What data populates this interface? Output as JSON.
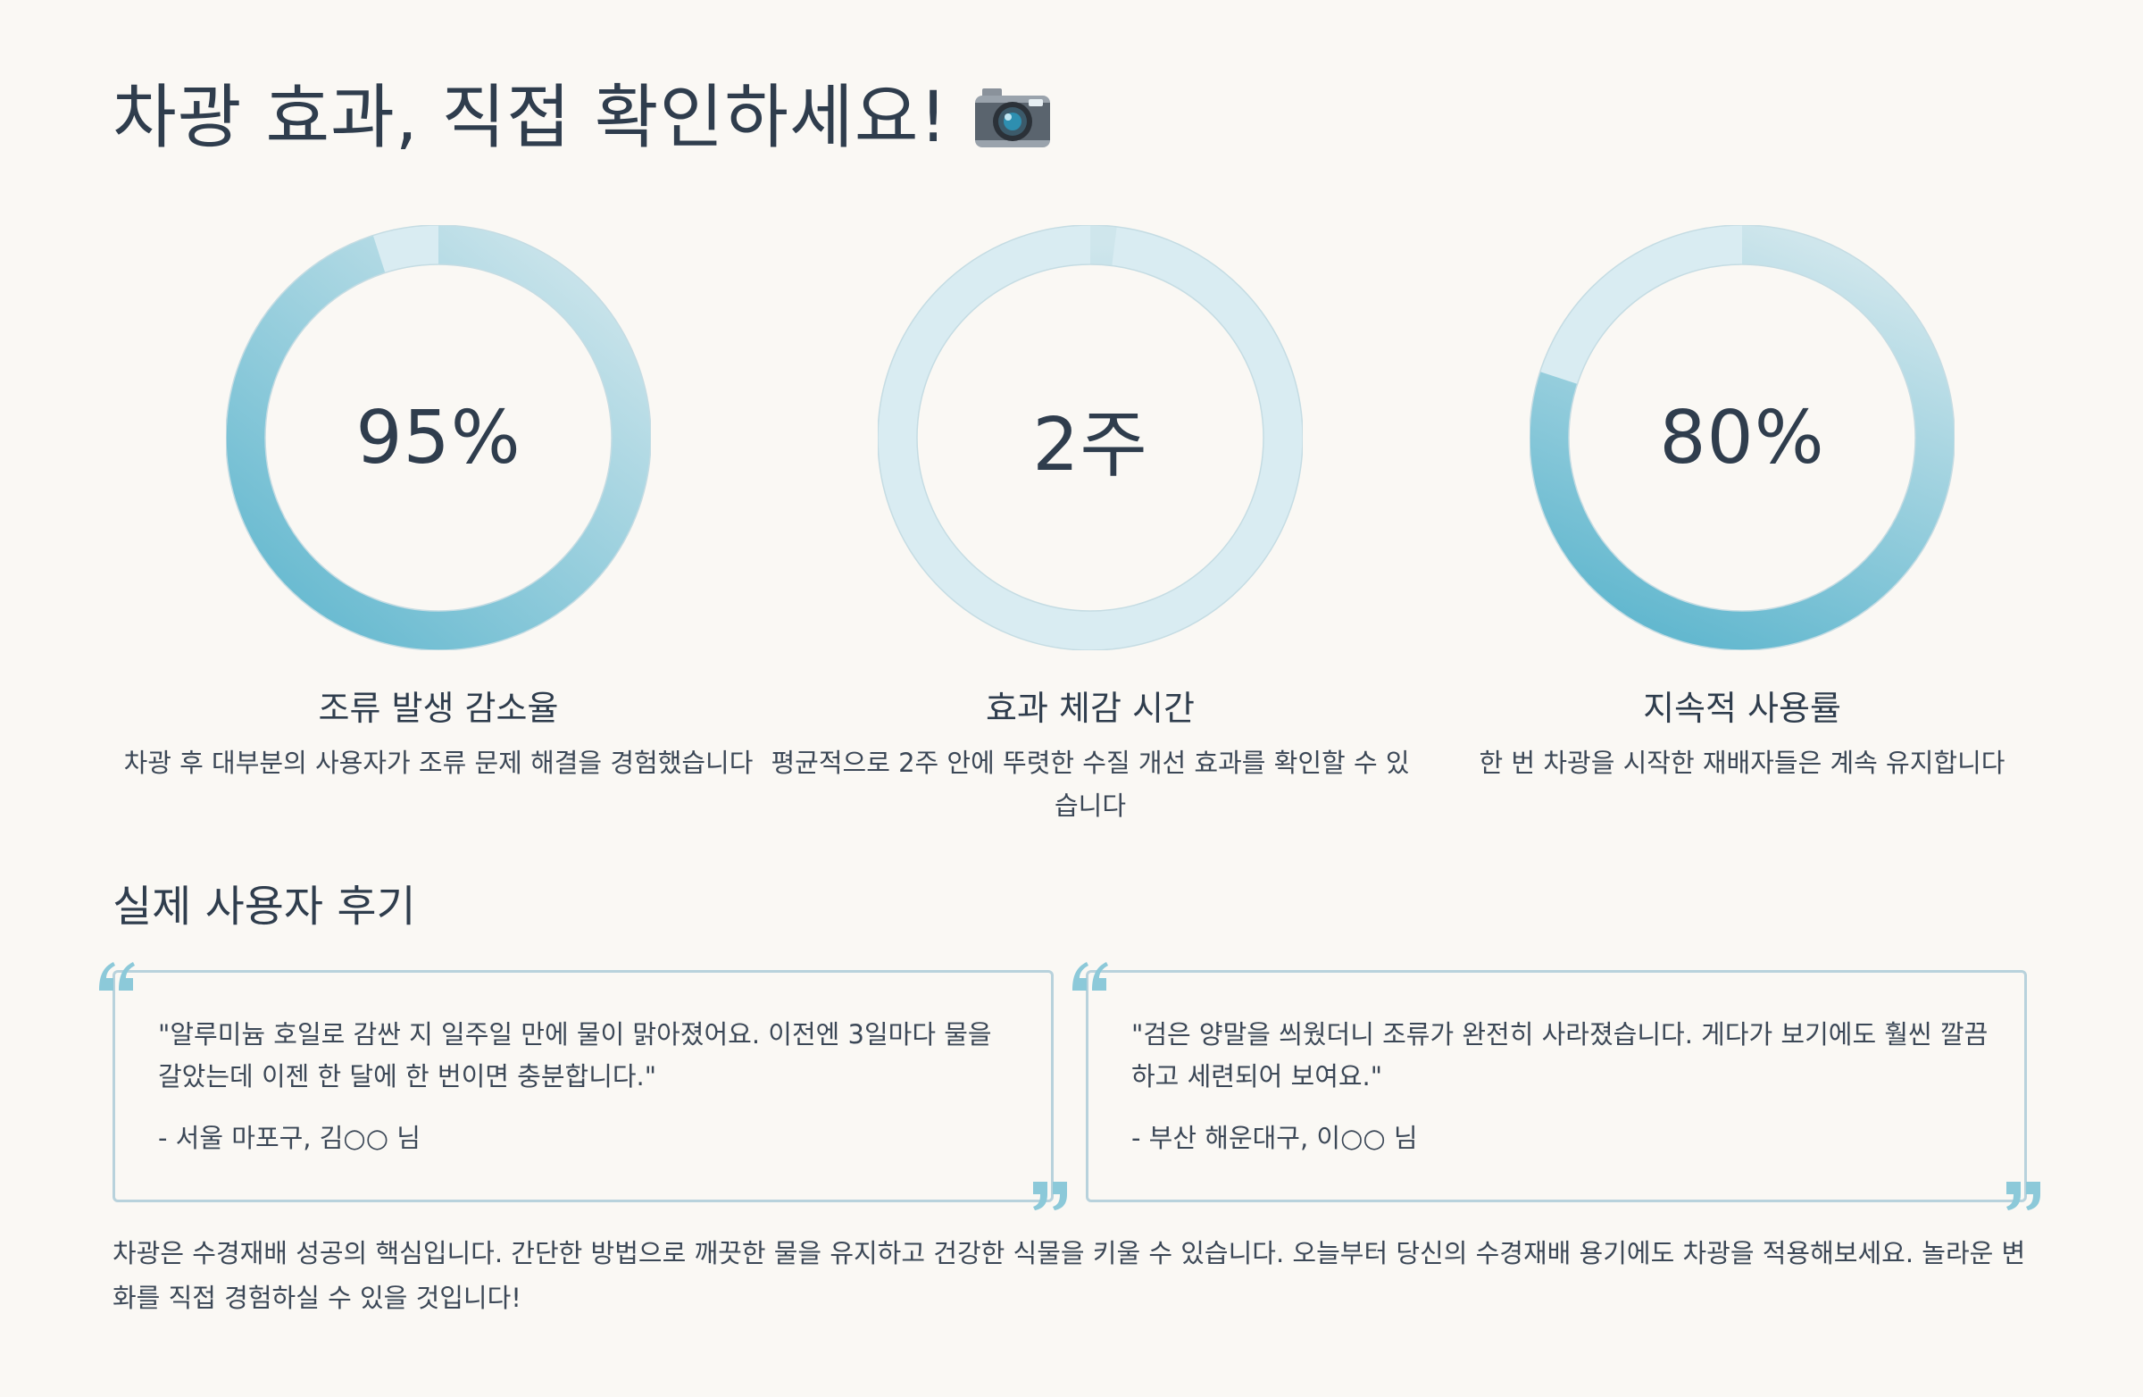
{
  "page": {
    "title": "차광 효과, 직접 확인하세요!",
    "title_icon": "camera-icon"
  },
  "stats": [
    {
      "value": "95%",
      "fill_fraction": 0.95,
      "label": "조류 발생 감소율",
      "description": "차광 후 대부분의 사용자가 조류 문제 해결을 경험했습니다"
    },
    {
      "value": "2주",
      "fill_fraction": 0.02,
      "label": "효과 체감 시간",
      "description": "평균적으로 2주 안에 뚜렷한 수질 개선 효과를 확인할 수 있습니다"
    },
    {
      "value": "80%",
      "fill_fraction": 0.8,
      "label": "지속적 사용률",
      "description": "한 번 차광을 시작한 재배자들은 계속 유지합니다"
    }
  ],
  "reviews": {
    "title": "실제 사용자 후기",
    "items": [
      {
        "text": "\"알루미늄 호일로 감싼 지 일주일 만에 물이 맑아졌어요. 이전엔 3일마다 물을 갈았는데 이젠 한 달에 한 번이면 충분합니다.\"",
        "author": "- 서울 마포구, 김○○ 님"
      },
      {
        "text": "\"검은 양말을 씌웠더니 조류가 완전히 사라졌습니다. 게다가 보기에도 훨씬 깔끔하고 세련되어 보여요.\"",
        "author": "- 부산 해운대구, 이○○ 님"
      }
    ]
  },
  "closing": "차광은 수경재배 성공의 핵심입니다. 간단한 방법으로 깨끗한 물을 유지하고 건강한 식물을 키울 수 있습니다. 오늘부터 당신의 수경재배 용기에도 차광을 적용해보세요. 놀라운 변화를 직접 경험하실 수 있을 것입니다!",
  "colors": {
    "ring_track": "#d9ecf2",
    "ring_start": "#c9e3ea",
    "ring_end": "#6cbcd2",
    "text": "#2f3d4d",
    "border": "#b8d2dc",
    "background": "#faf8f4"
  }
}
